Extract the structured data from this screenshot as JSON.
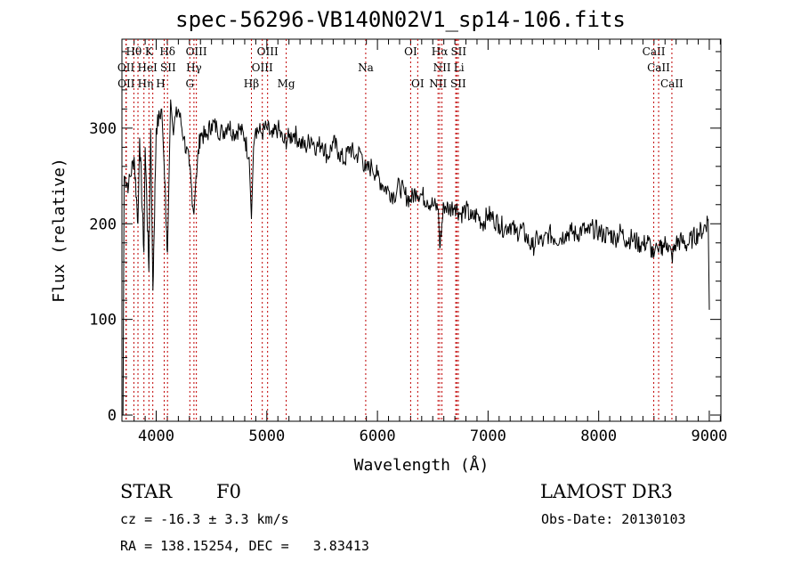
{
  "chart_data": {
    "type": "line",
    "title": "spec-56296-VB140N02V1_sp14-106.fits",
    "xlabel": "Wavelength (Å)",
    "ylabel": "Flux (relative)",
    "xlim": [
      3690,
      9105
    ],
    "ylim": [
      -6.5,
      393
    ],
    "xticks": [
      4000,
      5000,
      6000,
      7000,
      8000,
      9000
    ],
    "xtick_labels": [
      "4000",
      "5000",
      "6000",
      "7000",
      "8000",
      "9000"
    ],
    "yticks": [
      0,
      100,
      200,
      300
    ],
    "ytick_labels": [
      "0",
      "100",
      "200",
      "300"
    ],
    "grid": false,
    "line_color": "#000000",
    "marker_color": "#c00000",
    "spectrum": [
      [
        3700,
        0
      ],
      [
        3705,
        130
      ],
      [
        3710,
        250
      ],
      [
        3750,
        240
      ],
      [
        3800,
        270
      ],
      [
        3835,
        200
      ],
      [
        3850,
        290
      ],
      [
        3889,
        170
      ],
      [
        3900,
        280
      ],
      [
        3934,
        150
      ],
      [
        3950,
        300
      ],
      [
        3970,
        130
      ],
      [
        4000,
        300
      ],
      [
        4050,
        320
      ],
      [
        4072,
        260
      ],
      [
        4102,
        170
      ],
      [
        4130,
        330
      ],
      [
        4150,
        300
      ],
      [
        4200,
        320
      ],
      [
        4250,
        290
      ],
      [
        4300,
        260
      ],
      [
        4341,
        210
      ],
      [
        4360,
        250
      ],
      [
        4400,
        295
      ],
      [
        4450,
        290
      ],
      [
        4500,
        305
      ],
      [
        4550,
        300
      ],
      [
        4600,
        295
      ],
      [
        4650,
        305
      ],
      [
        4700,
        295
      ],
      [
        4750,
        300
      ],
      [
        4800,
        290
      ],
      [
        4840,
        270
      ],
      [
        4861,
        205
      ],
      [
        4880,
        280
      ],
      [
        4900,
        300
      ],
      [
        4950,
        295
      ],
      [
        5000,
        300
      ],
      [
        5050,
        290
      ],
      [
        5100,
        300
      ],
      [
        5150,
        285
      ],
      [
        5200,
        290
      ],
      [
        5250,
        295
      ],
      [
        5300,
        285
      ],
      [
        5350,
        280
      ],
      [
        5400,
        290
      ],
      [
        5450,
        280
      ],
      [
        5500,
        285
      ],
      [
        5550,
        270
      ],
      [
        5600,
        285
      ],
      [
        5650,
        275
      ],
      [
        5700,
        265
      ],
      [
        5750,
        280
      ],
      [
        5800,
        270
      ],
      [
        5850,
        275
      ],
      [
        5894,
        255
      ],
      [
        5950,
        260
      ],
      [
        6000,
        250
      ],
      [
        6050,
        240
      ],
      [
        6100,
        235
      ],
      [
        6150,
        230
      ],
      [
        6200,
        240
      ],
      [
        6250,
        230
      ],
      [
        6300,
        225
      ],
      [
        6350,
        235
      ],
      [
        6400,
        230
      ],
      [
        6450,
        225
      ],
      [
        6500,
        220
      ],
      [
        6550,
        215
      ],
      [
        6563,
        175
      ],
      [
        6600,
        220
      ],
      [
        6650,
        215
      ],
      [
        6700,
        220
      ],
      [
        6750,
        210
      ],
      [
        6800,
        215
      ],
      [
        6850,
        205
      ],
      [
        6900,
        210
      ],
      [
        6950,
        200
      ],
      [
        7000,
        210
      ],
      [
        7050,
        205
      ],
      [
        7100,
        200
      ],
      [
        7150,
        195
      ],
      [
        7200,
        200
      ],
      [
        7250,
        190
      ],
      [
        7300,
        195
      ],
      [
        7350,
        185
      ],
      [
        7400,
        175
      ],
      [
        7450,
        185
      ],
      [
        7500,
        180
      ],
      [
        7550,
        190
      ],
      [
        7600,
        185
      ],
      [
        7650,
        185
      ],
      [
        7700,
        190
      ],
      [
        7750,
        192
      ],
      [
        7800,
        188
      ],
      [
        7850,
        195
      ],
      [
        7900,
        190
      ],
      [
        7950,
        195
      ],
      [
        8000,
        192
      ],
      [
        8050,
        188
      ],
      [
        8100,
        190
      ],
      [
        8150,
        185
      ],
      [
        8200,
        192
      ],
      [
        8250,
        183
      ],
      [
        8300,
        185
      ],
      [
        8350,
        180
      ],
      [
        8400,
        178
      ],
      [
        8450,
        182
      ],
      [
        8498,
        165
      ],
      [
        8520,
        180
      ],
      [
        8542,
        170
      ],
      [
        8580,
        178
      ],
      [
        8620,
        180
      ],
      [
        8662,
        165
      ],
      [
        8700,
        180
      ],
      [
        8750,
        182
      ],
      [
        8800,
        178
      ],
      [
        8850,
        185
      ],
      [
        8900,
        190
      ],
      [
        8950,
        195
      ],
      [
        8990,
        205
      ],
      [
        9000,
        110
      ]
    ],
    "lines": [
      {
        "label": "Hθ",
        "wave": 3798,
        "row": 0
      },
      {
        "label": "K",
        "wave": 3934,
        "row": 0
      },
      {
        "label": "Hδ",
        "wave": 4102,
        "row": 0
      },
      {
        "label": "OIII",
        "wave": 4363,
        "row": 0
      },
      {
        "label": "OIII",
        "wave": 5007,
        "row": 0
      },
      {
        "label": "OI",
        "wave": 6300,
        "row": 0
      },
      {
        "label": "Hα",
        "wave": 6563,
        "row": 0
      },
      {
        "label": "SII",
        "wave": 6717,
        "row": 0
      },
      {
        "label": "CaII",
        "wave": 8498,
        "row": 0
      },
      {
        "label": "OII",
        "wave": 3727,
        "row": 1
      },
      {
        "label": "HeI",
        "wave": 3889,
        "row": 1
      },
      {
        "label": "SII",
        "wave": 4072,
        "row": 1
      },
      {
        "label": "Hγ",
        "wave": 4341,
        "row": 1
      },
      {
        "label": "OIII",
        "wave": 4959,
        "row": 1
      },
      {
        "label": "Na",
        "wave": 5894,
        "row": 1
      },
      {
        "label": "NII",
        "wave": 6583,
        "row": 1
      },
      {
        "label": "Li",
        "wave": 6708,
        "row": 1
      },
      {
        "label": "CaII",
        "wave": 8542,
        "row": 1
      },
      {
        "label": "OII",
        "wave": 3729,
        "row": 2
      },
      {
        "label": "Hη",
        "wave": 3835,
        "row": 2
      },
      {
        "label": "H",
        "wave": 3969,
        "row": 2
      },
      {
        "label": "G",
        "wave": 4304,
        "row": 2
      },
      {
        "label": "Hβ",
        "wave": 4861,
        "row": 2
      },
      {
        "label": "Mg",
        "wave": 5175,
        "row": 2
      },
      {
        "label": "OI",
        "wave": 6364,
        "row": 2
      },
      {
        "label": "NII",
        "wave": 6548,
        "row": 2
      },
      {
        "label": "SII",
        "wave": 6731,
        "row": 2
      },
      {
        "label": "CaII",
        "wave": 8662,
        "row": 2
      }
    ]
  },
  "info": {
    "class": "STAR",
    "subclass": "F0",
    "survey": "LAMOST DR3",
    "cz": "cz = -16.3 ± 3.3 km/s",
    "obs_date": "Obs-Date: 20130103",
    "coords": "RA = 138.15254, DEC =   3.83413"
  }
}
